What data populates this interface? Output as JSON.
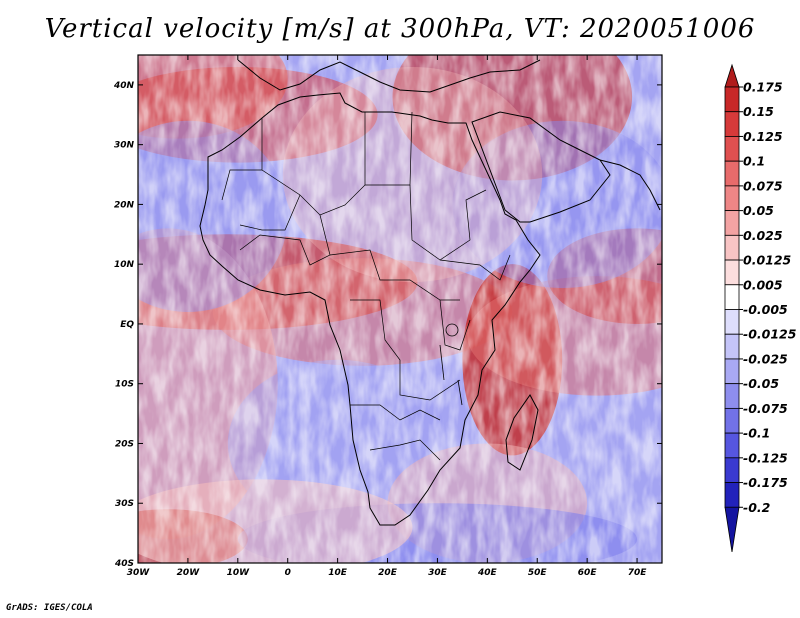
{
  "title": "Vertical velocity [m/s] at 300hPa, VT: 2020051006",
  "footer": "GrADS: IGES/COLA",
  "map": {
    "lon_range": [
      -30,
      75
    ],
    "lat_range": [
      -40,
      45
    ],
    "lon_ticks": [
      "30W",
      "20W",
      "10W",
      "0",
      "10E",
      "20E",
      "30E",
      "40E",
      "50E",
      "60E",
      "70E"
    ],
    "lat_ticks": [
      "40N",
      "30N",
      "20N",
      "10N",
      "EQ",
      "10S",
      "20S",
      "30S",
      "40S"
    ],
    "field": "vertical velocity",
    "colors": {
      "positive": "#d62f2f",
      "negative": "#5050e6",
      "coastline": "#000000"
    }
  },
  "colorbar": {
    "labels": [
      "0.175",
      "0.15",
      "0.125",
      "0.1",
      "0.075",
      "0.05",
      "0.025",
      "0.0125",
      "0.005",
      "-0.005",
      "-0.0125",
      "-0.025",
      "-0.05",
      "-0.075",
      "-0.1",
      "-0.125",
      "-0.175",
      "-0.2"
    ],
    "colors": [
      "#b01c1c",
      "#c82828",
      "#d63a3a",
      "#e05050",
      "#e86b6b",
      "#ee8686",
      "#f3a3a3",
      "#f8c4c4",
      "#fcdede",
      "#ffffff",
      "#dedefc",
      "#c4c4f8",
      "#a9a9f3",
      "#8e8eee",
      "#7272e8",
      "#5656e0",
      "#3a3ad0",
      "#2222bb",
      "#1414a0"
    ]
  }
}
